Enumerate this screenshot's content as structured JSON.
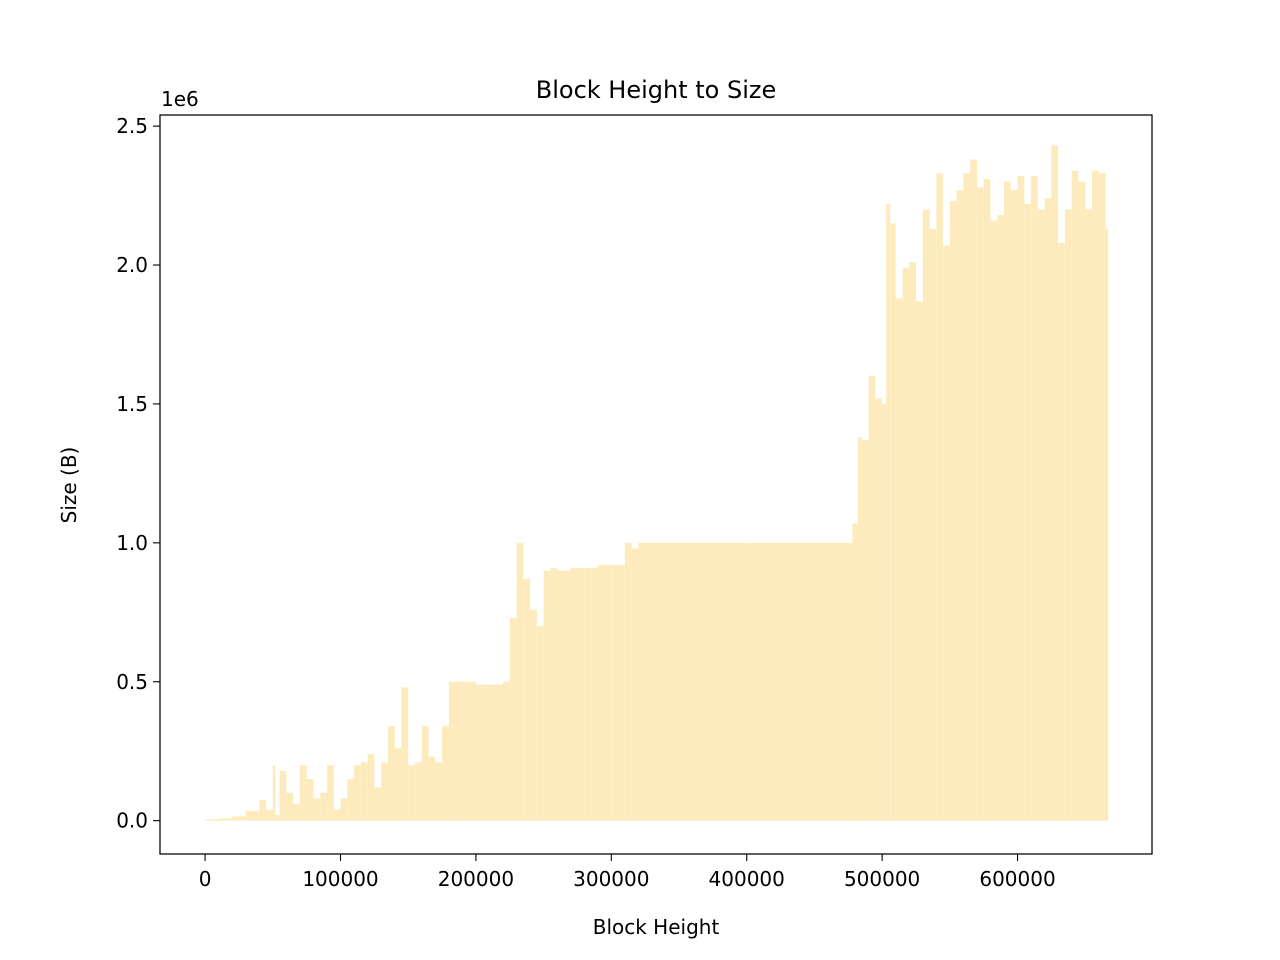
{
  "chart_data": {
    "type": "bar",
    "title": "Block Height to Size",
    "xlabel": "Block Height",
    "ylabel": "Size (B)",
    "y_offset_label": "1e6",
    "xlim": [
      -33300,
      699300
    ],
    "ylim": [
      -120000,
      2540000
    ],
    "x_ticks": [
      0,
      100000,
      200000,
      300000,
      400000,
      500000,
      600000
    ],
    "x_tick_labels": [
      "0",
      "100000",
      "200000",
      "300000",
      "400000",
      "500000",
      "600000"
    ],
    "y_ticks": [
      0,
      500000,
      1000000,
      1500000,
      2000000,
      2500000
    ],
    "y_tick_labels": [
      "0.0",
      "0.5",
      "1.0",
      "1.5",
      "2.0",
      "2.5"
    ],
    "grid": false,
    "legend": "none",
    "series_color": "#fdebbd",
    "series": [
      {
        "x": [
          0,
          10000,
          20000,
          30000,
          40000,
          45000,
          50000,
          52000,
          55000,
          60000,
          65000,
          70000,
          75000,
          80000,
          85000,
          90000,
          95000,
          100000,
          105000,
          110000,
          115000,
          120000,
          125000,
          130000,
          135000,
          140000,
          145000,
          150000,
          155000,
          160000,
          165000,
          170000,
          175000,
          180000,
          190000,
          200000,
          210000,
          220000,
          225000,
          230000,
          235000,
          240000,
          245000,
          250000,
          255000,
          260000,
          270000,
          280000,
          290000,
          300000,
          310000,
          315000,
          320000,
          330000,
          350000,
          400000,
          450000,
          478000,
          482000,
          485000,
          490000,
          495000,
          500000,
          503000,
          506000,
          510000,
          515000,
          520000,
          525000,
          530000,
          535000,
          540000,
          545000,
          550000,
          555000,
          560000,
          565000,
          570000,
          575000,
          580000,
          585000,
          590000,
          595000,
          600000,
          605000,
          610000,
          615000,
          620000,
          625000,
          630000,
          635000,
          640000,
          645000,
          650000,
          655000,
          660000,
          665000
        ],
        "values": [
          5000,
          8000,
          15000,
          35000,
          75000,
          40000,
          200000,
          20000,
          180000,
          100000,
          60000,
          200000,
          150000,
          80000,
          100000,
          200000,
          40000,
          80000,
          150000,
          200000,
          210000,
          240000,
          120000,
          210000,
          340000,
          260000,
          480000,
          200000,
          210000,
          340000,
          230000,
          210000,
          340000,
          500000,
          500000,
          490000,
          490000,
          500000,
          730000,
          1000000,
          870000,
          760000,
          700000,
          900000,
          910000,
          900000,
          910000,
          910000,
          920000,
          920000,
          1000000,
          980000,
          1000000,
          1000000,
          1000000,
          1000000,
          1000000,
          1070000,
          1380000,
          1370000,
          1600000,
          1520000,
          1500000,
          2220000,
          2150000,
          1880000,
          1990000,
          2010000,
          1870000,
          2200000,
          2130000,
          2330000,
          2070000,
          2230000,
          2270000,
          2330000,
          2380000,
          2280000,
          2310000,
          2160000,
          2180000,
          2300000,
          2270000,
          2320000,
          2220000,
          2320000,
          2200000,
          2240000,
          2430000,
          2080000,
          2200000,
          2340000,
          2300000,
          2200000,
          2340000,
          2330000,
          2130000
        ]
      }
    ]
  }
}
